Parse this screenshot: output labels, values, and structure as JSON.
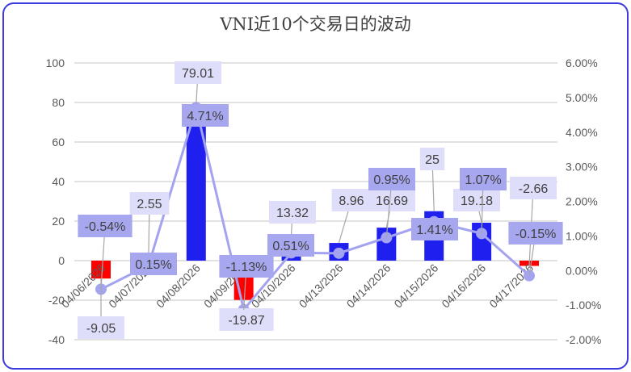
{
  "chart_data": {
    "type": "bar+line",
    "title": "VNI近10个交易日的波动",
    "categories": [
      "04/06/2026",
      "04/07/2026",
      "04/08/2026",
      "04/09/2026",
      "04/10/2026",
      "04/13/2026",
      "04/14/2026",
      "04/15/2026",
      "04/16/2026",
      "04/17/2026"
    ],
    "bar_series": {
      "values": [
        -9.05,
        2.55,
        79.01,
        -19.87,
        13.32,
        8.96,
        16.69,
        25,
        19.18,
        -2.66
      ],
      "labels": [
        "-9.05",
        "2.55",
        "79.01",
        "-19.87",
        "13.32",
        "8.96",
        "16.69",
        "25",
        "19.18",
        "-2.66"
      ],
      "positive_color": "#1f1fef",
      "negative_color": "#ff0000"
    },
    "line_series": {
      "values": [
        -0.54,
        0.15,
        4.71,
        -1.13,
        0.51,
        0.5,
        0.95,
        1.41,
        1.07,
        -0.15
      ],
      "labels": [
        "-0.54%",
        "0.15%",
        "4.71%",
        "-1.13%",
        "0.51%",
        null,
        "0.95%",
        "1.41%",
        "1.07%",
        "-0.15%"
      ],
      "color": "#a3a3f0"
    },
    "y_left": {
      "range": [
        -40,
        100
      ],
      "ticks": [
        "100",
        "80",
        "60",
        "40",
        "20",
        "0",
        "-20",
        "-40"
      ]
    },
    "y_right": {
      "range": [
        -2,
        6
      ],
      "ticks": [
        "6.00%",
        "5.00%",
        "4.00%",
        "3.00%",
        "2.00%",
        "1.00%",
        "0.00%",
        "-1.00%",
        "-2.00%"
      ]
    },
    "grid": true,
    "legend": "none"
  }
}
